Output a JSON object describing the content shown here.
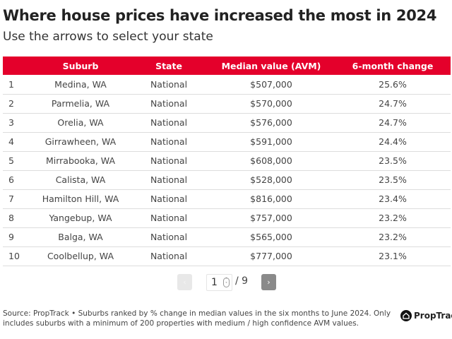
{
  "title": "Where house prices have increased the most in 2024",
  "subtitle": "Use the arrows to select your state",
  "table": {
    "headers": [
      "",
      "Suburb",
      "State",
      "Median value (AVM)",
      "6-month change"
    ],
    "rows": [
      [
        "1",
        "Medina, WA",
        "National",
        "$507,000",
        "25.6%"
      ],
      [
        "2",
        "Parmelia, WA",
        "National",
        "$570,000",
        "24.7%"
      ],
      [
        "3",
        "Orelia, WA",
        "National",
        "$576,000",
        "24.7%"
      ],
      [
        "4",
        "Girrawheen, WA",
        "National",
        "$591,000",
        "24.4%"
      ],
      [
        "5",
        "Mirrabooka, WA",
        "National",
        "$608,000",
        "23.5%"
      ],
      [
        "6",
        "Calista, WA",
        "National",
        "$528,000",
        "23.5%"
      ],
      [
        "7",
        "Hamilton Hill, WA",
        "National",
        "$816,000",
        "23.4%"
      ],
      [
        "8",
        "Yangebup, WA",
        "National",
        "$757,000",
        "23.2%"
      ],
      [
        "9",
        "Balga, WA",
        "National",
        "$565,000",
        "23.2%"
      ],
      [
        "10",
        "Coolbellup, WA",
        "National",
        "$777,000",
        "23.1%"
      ]
    ]
  },
  "pagination": {
    "prev": "‹",
    "next": "›",
    "page": "1",
    "total": "/ 9"
  },
  "source": "Source: PropTrack • Suburbs ranked by % change in median values in the six months to June 2024. Only includes suburbs with a minimum of 200 properties with medium / high confidence AVM values.",
  "logo": "PropTrack",
  "colors": {
    "header": "#e4002b"
  }
}
